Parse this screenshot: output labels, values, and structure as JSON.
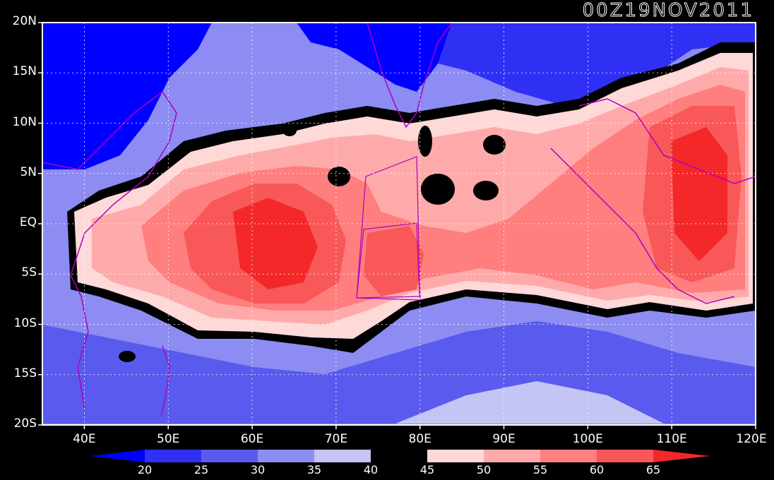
{
  "title": "00Z19NOV2011",
  "map": {
    "lon_range": [
      35,
      120
    ],
    "lat_range": [
      -20,
      20
    ],
    "lat_ticks": [
      {
        "value": 20,
        "label": "20N"
      },
      {
        "value": 15,
        "label": "15N"
      },
      {
        "value": 10,
        "label": "10N"
      },
      {
        "value": 5,
        "label": "5N"
      },
      {
        "value": 0,
        "label": "EQ"
      },
      {
        "value": -5,
        "label": "5S"
      },
      {
        "value": -10,
        "label": "10S"
      },
      {
        "value": -15,
        "label": "15S"
      },
      {
        "value": -20,
        "label": "20S"
      }
    ],
    "lon_ticks": [
      {
        "value": 40,
        "label": "40E"
      },
      {
        "value": 50,
        "label": "50E"
      },
      {
        "value": 60,
        "label": "60E"
      },
      {
        "value": 70,
        "label": "70E"
      },
      {
        "value": 80,
        "label": "80E"
      },
      {
        "value": 90,
        "label": "90E"
      },
      {
        "value": 100,
        "label": "100E"
      },
      {
        "value": 110,
        "label": "110E"
      },
      {
        "value": 120,
        "label": "120E"
      }
    ],
    "grid": true
  },
  "colorbar": {
    "levels": [
      "20",
      "25",
      "30",
      "35",
      "40",
      "45",
      "50",
      "55",
      "60",
      "65"
    ],
    "colors": [
      "#0000ff",
      "#3030f4",
      "#5a5aee",
      "#8c8cf2",
      "#c4c4f5",
      "#000000",
      "#ffd8d8",
      "#ffaaaa",
      "#ff7e7e",
      "#f85858",
      "#f42828"
    ]
  },
  "colors": {
    "coast": "#b000c0",
    "grid": "#ffffff",
    "background": "#000000"
  }
}
